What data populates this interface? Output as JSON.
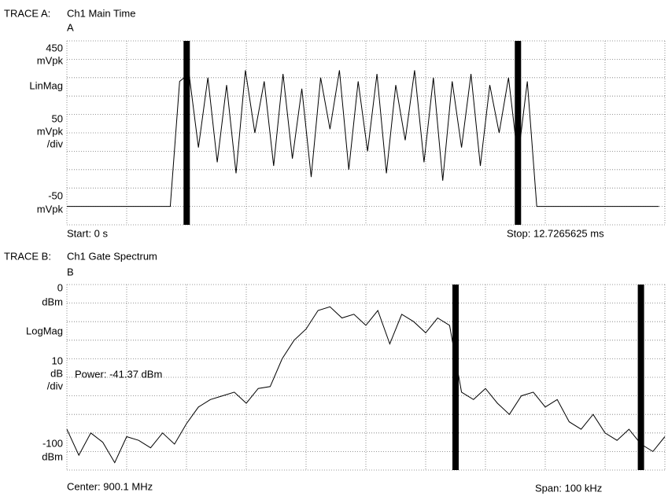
{
  "chart_data": [
    {
      "type": "line",
      "trace_label": "TRACE A:",
      "title": "Ch1 Main Time",
      "letter": "A",
      "y_unit": "mVpk",
      "y_scale_label": "LinMag",
      "y_div": 50,
      "y_div_unit": "mVpk",
      "y_div_suffix": "/div",
      "start_label": "Start: 0 s",
      "stop_label": "Stop: 12.7265625 ms",
      "xlim": [
        0,
        12.7265625
      ],
      "xticks": [
        0,
        1.27265625,
        2.5453125,
        3.81796875,
        5.090625,
        6.36328125,
        7.6359375,
        8.90859375,
        10.18125,
        11.45390625,
        12.7265625
      ],
      "ylim": [
        -50,
        450
      ],
      "yticks": [
        -50,
        0,
        50,
        100,
        150,
        200,
        250,
        300,
        350,
        400,
        450
      ],
      "grid": true,
      "color": "#000000",
      "markers": [
        2.55,
        9.6
      ],
      "x": [
        0,
        0.2,
        0.4,
        0.6,
        0.8,
        1.0,
        1.2,
        1.4,
        1.6,
        1.8,
        2.0,
        2.2,
        2.4,
        2.6,
        2.8,
        3.0,
        3.2,
        3.4,
        3.6,
        3.8,
        4.0,
        4.2,
        4.4,
        4.6,
        4.8,
        5.0,
        5.2,
        5.4,
        5.6,
        5.8,
        6.0,
        6.2,
        6.4,
        6.6,
        6.8,
        7.0,
        7.2,
        7.4,
        7.6,
        7.8,
        8.0,
        8.2,
        8.4,
        8.6,
        8.8,
        9.0,
        9.2,
        9.4,
        9.6,
        9.8,
        10.0,
        10.2,
        10.4,
        10.6,
        10.8,
        11.0,
        11.2,
        11.4,
        11.6,
        11.8,
        12.0,
        12.2,
        12.4,
        12.6
      ],
      "values": [
        0,
        0,
        0,
        0,
        0,
        0,
        0,
        0,
        0,
        0,
        0,
        0,
        340,
        360,
        160,
        350,
        120,
        330,
        90,
        370,
        200,
        340,
        110,
        360,
        130,
        320,
        80,
        350,
        210,
        370,
        100,
        340,
        150,
        360,
        90,
        330,
        180,
        370,
        120,
        350,
        70,
        340,
        160,
        360,
        110,
        330,
        200,
        350,
        130,
        340,
        0,
        0,
        0,
        0,
        0,
        0,
        0,
        0,
        0,
        0,
        0,
        0,
        0,
        0
      ]
    },
    {
      "type": "line",
      "trace_label": "TRACE B:",
      "title": "Ch1 Gate Spectrum",
      "letter": "B",
      "y_unit": "dBm",
      "y_scale_label": "LogMag",
      "y_div": 10,
      "y_div_unit": "dB",
      "y_div_suffix": "/div",
      "annotation": "Power: -41.37  dBm",
      "start_label": "Center: 900.1 MHz",
      "stop_label": "Span: 100 kHz",
      "xlim": [
        900.05,
        900.15
      ],
      "xticks": [
        900.05,
        900.06,
        900.07,
        900.08,
        900.09,
        900.1,
        900.11,
        900.12,
        900.13,
        900.14,
        900.15
      ],
      "ylim": [
        -100,
        0
      ],
      "yticks": [
        -100,
        -90,
        -80,
        -70,
        -60,
        -50,
        -40,
        -30,
        -20,
        -10,
        0
      ],
      "grid": true,
      "color": "#000000",
      "markers": [
        900.115,
        900.146
      ],
      "x": [
        900.05,
        900.052,
        900.054,
        900.056,
        900.058,
        900.06,
        900.062,
        900.064,
        900.066,
        900.068,
        900.07,
        900.072,
        900.074,
        900.076,
        900.078,
        900.08,
        900.082,
        900.084,
        900.086,
        900.088,
        900.09,
        900.092,
        900.094,
        900.096,
        900.098,
        900.1,
        900.102,
        900.104,
        900.106,
        900.108,
        900.11,
        900.112,
        900.114,
        900.116,
        900.118,
        900.12,
        900.122,
        900.124,
        900.126,
        900.128,
        900.13,
        900.132,
        900.134,
        900.136,
        900.138,
        900.14,
        900.142,
        900.144,
        900.146,
        900.148,
        900.15
      ],
      "values": [
        -78,
        -92,
        -80,
        -85,
        -96,
        -82,
        -84,
        -88,
        -80,
        -86,
        -75,
        -66,
        -62,
        -60,
        -58,
        -64,
        -56,
        -55,
        -40,
        -30,
        -24,
        -14,
        -12,
        -18,
        -16,
        -22,
        -14,
        -32,
        -16,
        -20,
        -26,
        -18,
        -22,
        -58,
        -62,
        -56,
        -64,
        -70,
        -60,
        -58,
        -66,
        -62,
        -74,
        -78,
        -70,
        -80,
        -84,
        -78,
        -86,
        -90,
        -82
      ]
    }
  ]
}
